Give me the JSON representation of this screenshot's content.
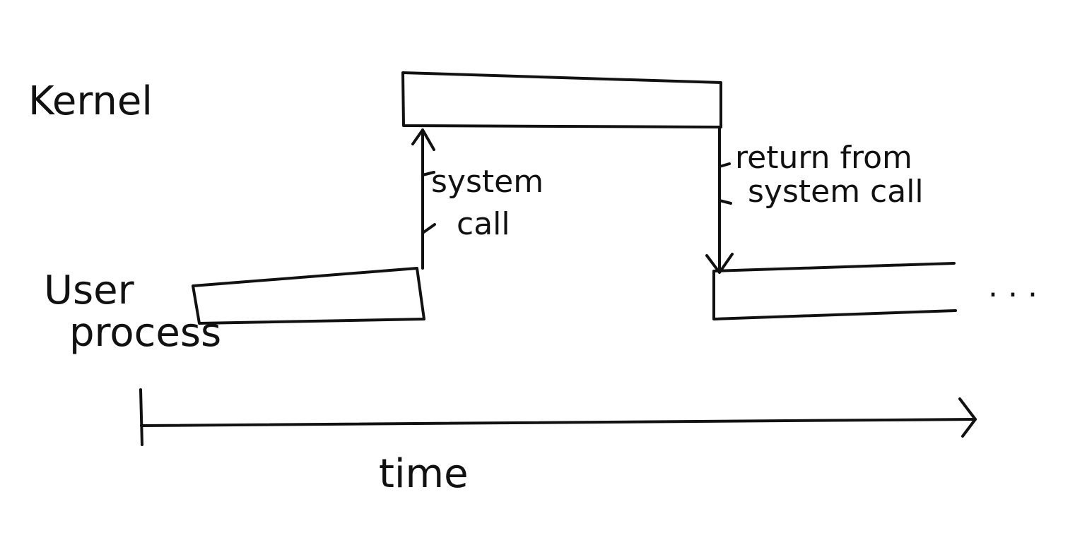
{
  "labels": {
    "kernel": "Kernel",
    "user_line1": "User",
    "user_line2": "process",
    "syscall_line1": "system",
    "syscall_line2": "call",
    "return_line1": "return from",
    "return_line2": "system call",
    "ellipsis": ". . .",
    "time_axis": "time"
  },
  "colors": {
    "ink": "#111111",
    "background": "#ffffff"
  }
}
